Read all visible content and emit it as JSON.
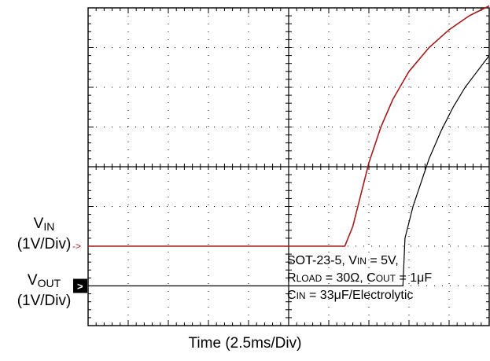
{
  "chart_data": {
    "type": "line",
    "title": "",
    "xlabel": "Time (2.5ms/Div)",
    "ylabel": "",
    "grid": true,
    "x_divisions": 10,
    "y_divisions": 8,
    "xlim": [
      0,
      10
    ],
    "ylim": [
      0,
      8
    ],
    "channels": [
      {
        "name_main": "V",
        "name_sub": "IN",
        "scale": "(1V/Div)",
        "marker": "->",
        "color": "#a51c1c"
      },
      {
        "name_main": "V",
        "name_sub": "OUT",
        "scale": "(1V/Div)",
        "marker": ">",
        "color": "#000000"
      }
    ],
    "series": [
      {
        "name": "VIN",
        "color": "#a51c1c",
        "x": [
          0,
          6.4,
          6.6,
          6.8,
          7.0,
          7.3,
          7.6,
          8.0,
          8.5,
          9.0,
          9.5,
          10
        ],
        "y": [
          2.0,
          2.0,
          2.5,
          3.3,
          4.1,
          5.0,
          5.7,
          6.4,
          7.0,
          7.45,
          7.8,
          8.05
        ]
      },
      {
        "name": "VOUT",
        "color": "#000000",
        "x": [
          0,
          7.85,
          7.9,
          8.1,
          8.3,
          8.5,
          8.8,
          9.1,
          9.4,
          9.7,
          10
        ],
        "y": [
          1.0,
          1.0,
          2.2,
          3.0,
          3.6,
          4.2,
          4.9,
          5.5,
          6.0,
          6.4,
          6.8
        ]
      }
    ],
    "annotation_lines": [
      [
        {
          "t": "SOT-23-5, V"
        },
        {
          "t": "IN",
          "sub": true
        },
        {
          "t": " = 5V,"
        }
      ],
      [
        {
          "t": "R"
        },
        {
          "t": "LOAD",
          "sub": true
        },
        {
          "t": " = 30Ω, C"
        },
        {
          "t": "OUT",
          "sub": true
        },
        {
          "t": " = 1μF"
        }
      ],
      [
        {
          "t": "C"
        },
        {
          "t": "IN",
          "sub": true
        },
        {
          "t": " = 33μF/Electrolytic"
        }
      ]
    ]
  }
}
